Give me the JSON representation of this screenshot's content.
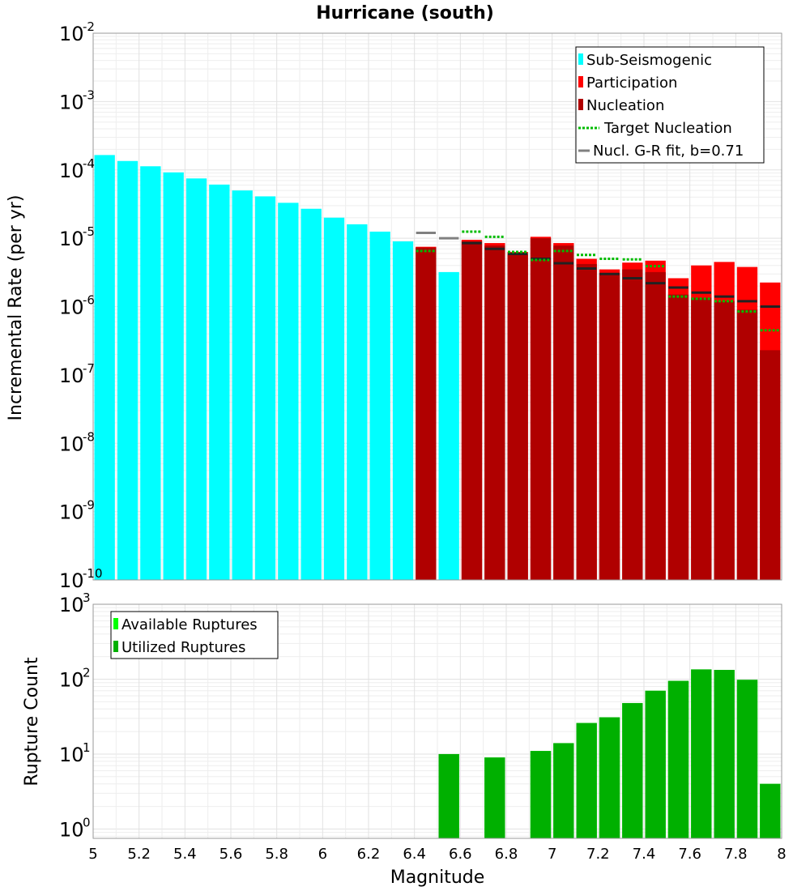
{
  "chart_data": [
    {
      "type": "bar",
      "title": "Hurricane (south)",
      "xlabel": "",
      "ylabel": "Incremental Rate (per yr)",
      "yscale": "log",
      "xlim": [
        5,
        8
      ],
      "ylim": [
        1e-10,
        0.01
      ],
      "y_tick_labels": [
        {
          "base": "10",
          "exp": "-10",
          "value": 1e-10
        },
        {
          "base": "10",
          "exp": "-9",
          "value": 1e-09
        },
        {
          "base": "10",
          "exp": "-8",
          "value": 1e-08
        },
        {
          "base": "10",
          "exp": "-7",
          "value": 1e-07
        },
        {
          "base": "10",
          "exp": "-6",
          "value": 1e-06
        },
        {
          "base": "10",
          "exp": "-5",
          "value": 1e-05
        },
        {
          "base": "10",
          "exp": "-4",
          "value": 0.0001
        },
        {
          "base": "10",
          "exp": "-3",
          "value": 0.001
        },
        {
          "base": "10",
          "exp": "-2",
          "value": 0.01
        }
      ],
      "bin_width": 0.1,
      "legend_position": "top-right",
      "legend": [
        "Sub-Seismogenic",
        "Participation",
        "Nucleation",
        "Target Nucleation",
        "Nucl. G-R fit, b=0.71"
      ],
      "colors": {
        "sub_seismogenic": "#00ffff",
        "participation": "#ff0000",
        "nucleation": "#b00000",
        "target_nucleation": "#00bb00",
        "gr_fit": "#808080",
        "bin_marker": "#222222"
      },
      "series": [
        {
          "name": "Sub-Seismogenic",
          "style": "bar",
          "x": [
            5.05,
            5.15,
            5.25,
            5.35,
            5.45,
            5.55,
            5.65,
            5.75,
            5.85,
            5.95,
            6.05,
            6.15,
            6.25,
            6.35,
            6.55
          ],
          "values": [
            0.000165,
            0.000135,
            0.000113,
            9.2e-05,
            7.5e-05,
            6.1e-05,
            5e-05,
            4.1e-05,
            3.3e-05,
            2.7e-05,
            2e-05,
            1.6e-05,
            1.25e-05,
            9e-06,
            3.2e-06
          ]
        },
        {
          "name": "Participation",
          "style": "bar",
          "x": [
            6.45,
            6.65,
            6.75,
            6.85,
            6.95,
            7.05,
            7.15,
            7.25,
            7.35,
            7.45,
            7.55,
            7.65,
            7.75,
            7.85,
            7.95
          ],
          "values": [
            7.5e-06,
            9.5e-06,
            8.5e-06,
            6.3e-06,
            1.05e-05,
            8.5e-06,
            5e-06,
            3.5e-06,
            4.4e-06,
            4.7e-06,
            2.6e-06,
            4e-06,
            4.5e-06,
            3.8e-06,
            2.25e-06
          ]
        },
        {
          "name": "Nucleation",
          "style": "bar",
          "x": [
            6.45,
            6.65,
            6.75,
            6.85,
            6.95,
            7.05,
            7.15,
            7.25,
            7.35,
            7.45,
            7.55,
            7.65,
            7.75,
            7.85,
            7.95
          ],
          "values": [
            7.3e-06,
            9e-06,
            7.8e-06,
            5.8e-06,
            1e-05,
            7.8e-06,
            4.2e-06,
            3.1e-06,
            3.5e-06,
            3.2e-06,
            1.5e-06,
            1.35e-06,
            1.2e-06,
            9e-07,
            2.3e-07
          ]
        },
        {
          "name": "Target Nucleation",
          "style": "dotted-segment",
          "x": [
            6.45,
            6.65,
            6.75,
            6.85,
            6.95,
            7.05,
            7.15,
            7.25,
            7.35,
            7.45,
            7.55,
            7.65,
            7.75,
            7.85,
            7.95
          ],
          "values": [
            6.5e-06,
            1.25e-05,
            1.05e-05,
            6.3e-06,
            4.8e-06,
            6.5e-06,
            5.7e-06,
            5e-06,
            4.9e-06,
            3.9e-06,
            1.4e-06,
            1.3e-06,
            1.2e-06,
            8.5e-07,
            4.5e-07
          ]
        },
        {
          "name": "Nucl. G-R fit, b=0.71",
          "style": "segment",
          "x": [
            6.45,
            6.55
          ],
          "values": [
            1.2e-05,
            1e-05
          ]
        },
        {
          "name": "Bin marker",
          "style": "segment",
          "legend": false,
          "x": [
            6.65,
            6.75,
            6.85,
            6.95,
            7.05,
            7.15,
            7.25,
            7.35,
            7.45,
            7.55,
            7.65,
            7.75,
            7.85,
            7.95
          ],
          "values": [
            8.5e-06,
            7e-06,
            5.9e-06,
            5e-06,
            4.3e-06,
            3.6e-06,
            3e-06,
            2.6e-06,
            2.2e-06,
            1.9e-06,
            1.6e-06,
            1.4e-06,
            1.2e-06,
            1e-06
          ]
        }
      ]
    },
    {
      "type": "bar",
      "title": "",
      "xlabel": "Magnitude",
      "ylabel": "Rupture Count",
      "yscale": "log",
      "xlim": [
        5,
        8
      ],
      "ylim": [
        0.75,
        1000
      ],
      "x_tick_labels": [
        "5",
        "5.2",
        "5.4",
        "5.6",
        "5.8",
        "6",
        "6.2",
        "6.4",
        "6.6",
        "6.8",
        "7",
        "7.2",
        "7.4",
        "7.6",
        "7.8",
        "8"
      ],
      "y_tick_labels": [
        {
          "base": "10",
          "exp": "0",
          "value": 1
        },
        {
          "base": "10",
          "exp": "1",
          "value": 10
        },
        {
          "base": "10",
          "exp": "2",
          "value": 100
        },
        {
          "base": "10",
          "exp": "3",
          "value": 1000
        }
      ],
      "bin_width": 0.1,
      "legend_position": "top-left",
      "legend": [
        "Available Ruptures",
        "Utilized Ruptures"
      ],
      "colors": {
        "available": "#00ff00",
        "utilized": "#00b000"
      },
      "series": [
        {
          "name": "Available Ruptures",
          "x": [
            6.55,
            6.75,
            6.95,
            7.05,
            7.15,
            7.25,
            7.35,
            7.45,
            7.55,
            7.65,
            7.75,
            7.85,
            7.95
          ],
          "values": [
            10,
            9,
            11,
            14,
            26,
            31,
            48,
            70,
            95,
            135,
            133,
            98,
            4
          ]
        },
        {
          "name": "Utilized Ruptures",
          "x": [
            6.55,
            6.75,
            6.95,
            7.05,
            7.15,
            7.25,
            7.35,
            7.45,
            7.55,
            7.65,
            7.75,
            7.85,
            7.95
          ],
          "values": [
            10,
            9,
            11,
            14,
            26,
            31,
            48,
            70,
            95,
            135,
            133,
            98,
            4
          ]
        }
      ]
    }
  ]
}
